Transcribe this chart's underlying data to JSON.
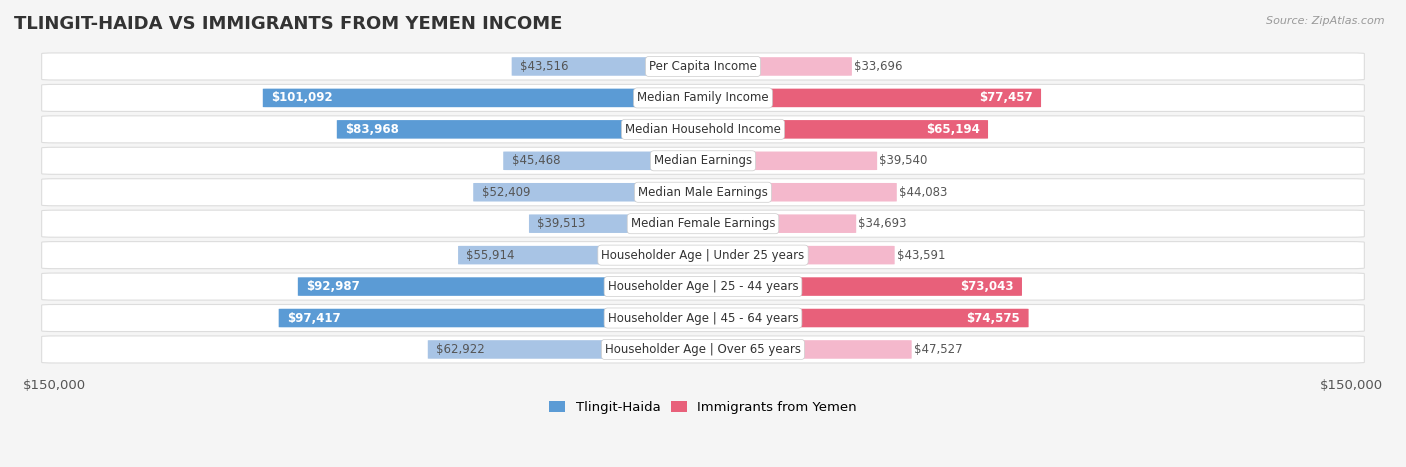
{
  "title": "TLINGIT-HAIDA VS IMMIGRANTS FROM YEMEN INCOME",
  "source": "Source: ZipAtlas.com",
  "categories": [
    "Per Capita Income",
    "Median Family Income",
    "Median Household Income",
    "Median Earnings",
    "Median Male Earnings",
    "Median Female Earnings",
    "Householder Age | Under 25 years",
    "Householder Age | 25 - 44 years",
    "Householder Age | 45 - 64 years",
    "Householder Age | Over 65 years"
  ],
  "tlingit_values": [
    43516,
    101092,
    83968,
    45468,
    52409,
    39513,
    55914,
    92987,
    97417,
    62922
  ],
  "yemen_values": [
    33696,
    77457,
    65194,
    39540,
    44083,
    34693,
    43591,
    73043,
    74575,
    47527
  ],
  "tlingit_labels": [
    "$43,516",
    "$101,092",
    "$83,968",
    "$45,468",
    "$52,409",
    "$39,513",
    "$55,914",
    "$92,987",
    "$97,417",
    "$62,922"
  ],
  "yemen_labels": [
    "$33,696",
    "$77,457",
    "$65,194",
    "$39,540",
    "$44,083",
    "$34,693",
    "$43,591",
    "$73,043",
    "$74,575",
    "$47,527"
  ],
  "tlingit_color_light": "#a8c4e5",
  "tlingit_color_dark": "#5b9bd5",
  "yemen_color_light": "#f4b8cc",
  "yemen_color_dark": "#e8607a",
  "max_value": 150000,
  "background_color": "#f5f5f5",
  "row_bg_color": "#ffffff",
  "row_border_color": "#dddddd",
  "label_dark_color": "#ffffff",
  "label_light_color": "#555555",
  "tlingit_dark_threshold": 65000,
  "yemen_dark_threshold": 60000,
  "legend_tlingit": "Tlingit-Haida",
  "legend_yemen": "Immigrants from Yemen",
  "cat_label_fontsize": 8.5,
  "val_label_fontsize": 8.5,
  "title_fontsize": 13,
  "source_fontsize": 8
}
